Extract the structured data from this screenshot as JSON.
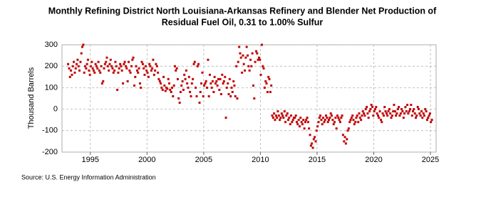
{
  "chart_data": {
    "type": "scatter",
    "title": "Monthly Refining District North Louisiana-Arkansas Refinery and Blender Net Production of",
    "subtitle": "Residual Fuel Oil, 0.31 to 1.00% Sulfur",
    "y_label": "Thousand Barrels",
    "source": "Source: U.S. Energy Information Administration",
    "color": "#c00000",
    "grid": true,
    "xlim": [
      1992.5,
      2025.5
    ],
    "ylim": [
      -200,
      300
    ],
    "xticks": [
      1995,
      2000,
      2005,
      2010,
      2015,
      2020,
      2025
    ],
    "yticks": [
      -200,
      -100,
      0,
      100,
      200,
      300
    ],
    "x": [
      1993.04,
      1993.13,
      1993.21,
      1993.29,
      1993.38,
      1993.46,
      1993.54,
      1993.63,
      1993.71,
      1993.79,
      1993.88,
      1993.96,
      1994.04,
      1994.13,
      1994.21,
      1994.29,
      1994.38,
      1994.46,
      1994.54,
      1994.63,
      1994.71,
      1994.79,
      1994.88,
      1994.96,
      1995.04,
      1995.13,
      1995.21,
      1995.29,
      1995.38,
      1995.46,
      1995.54,
      1995.63,
      1995.71,
      1995.79,
      1995.88,
      1995.96,
      1996.04,
      1996.13,
      1996.21,
      1996.29,
      1996.38,
      1996.46,
      1996.54,
      1996.63,
      1996.71,
      1996.79,
      1996.88,
      1996.96,
      1997.04,
      1997.13,
      1997.21,
      1997.29,
      1997.38,
      1997.46,
      1997.54,
      1997.63,
      1997.71,
      1997.79,
      1997.88,
      1997.96,
      1998.04,
      1998.13,
      1998.21,
      1998.29,
      1998.38,
      1998.46,
      1998.54,
      1998.63,
      1998.71,
      1998.79,
      1998.88,
      1998.96,
      1999.04,
      1999.13,
      1999.21,
      1999.29,
      1999.38,
      1999.46,
      1999.54,
      1999.63,
      1999.71,
      1999.79,
      1999.88,
      1999.96,
      2000.04,
      2000.13,
      2000.21,
      2000.29,
      2000.38,
      2000.46,
      2000.54,
      2000.63,
      2000.71,
      2000.79,
      2000.88,
      2000.96,
      2001.04,
      2001.13,
      2001.21,
      2001.29,
      2001.38,
      2001.46,
      2001.54,
      2001.63,
      2001.71,
      2001.79,
      2001.88,
      2001.96,
      2002.04,
      2002.13,
      2002.21,
      2002.29,
      2002.38,
      2002.46,
      2002.54,
      2002.63,
      2002.71,
      2002.79,
      2002.88,
      2002.96,
      2003.04,
      2003.13,
      2003.21,
      2003.29,
      2003.38,
      2003.46,
      2003.54,
      2003.63,
      2003.71,
      2003.79,
      2003.88,
      2003.96,
      2004.04,
      2004.13,
      2004.21,
      2004.29,
      2004.38,
      2004.46,
      2004.54,
      2004.63,
      2004.71,
      2004.79,
      2004.88,
      2004.96,
      2005.04,
      2005.13,
      2005.21,
      2005.29,
      2005.38,
      2005.46,
      2005.54,
      2005.63,
      2005.71,
      2005.79,
      2005.88,
      2005.96,
      2006.04,
      2006.13,
      2006.21,
      2006.29,
      2006.38,
      2006.46,
      2006.54,
      2006.63,
      2006.71,
      2006.79,
      2006.88,
      2006.96,
      2007.04,
      2007.13,
      2007.21,
      2007.29,
      2007.38,
      2007.46,
      2007.54,
      2007.63,
      2007.71,
      2007.79,
      2007.88,
      2007.96,
      2008.04,
      2008.13,
      2008.21,
      2008.29,
      2008.38,
      2008.46,
      2008.54,
      2008.63,
      2008.71,
      2008.79,
      2008.88,
      2008.96,
      2009.04,
      2009.13,
      2009.21,
      2009.29,
      2009.38,
      2009.46,
      2009.54,
      2009.63,
      2009.71,
      2009.79,
      2009.88,
      2009.96,
      2010.04,
      2010.13,
      2010.21,
      2010.29,
      2010.38,
      2010.46,
      2010.54,
      2010.63,
      2010.71,
      2010.79,
      2010.88,
      2010.96,
      2011.04,
      2011.13,
      2011.21,
      2011.29,
      2011.38,
      2011.46,
      2011.54,
      2011.63,
      2011.71,
      2011.79,
      2011.88,
      2011.96,
      2012.04,
      2012.13,
      2012.21,
      2012.29,
      2012.38,
      2012.46,
      2012.54,
      2012.63,
      2012.71,
      2012.79,
      2012.88,
      2012.96,
      2013.04,
      2013.13,
      2013.21,
      2013.29,
      2013.38,
      2013.46,
      2013.54,
      2013.63,
      2013.71,
      2013.79,
      2013.88,
      2013.96,
      2014.04,
      2014.13,
      2014.21,
      2014.29,
      2014.38,
      2014.46,
      2014.54,
      2014.63,
      2014.71,
      2014.79,
      2014.88,
      2014.96,
      2015.04,
      2015.13,
      2015.21,
      2015.29,
      2015.38,
      2015.46,
      2015.54,
      2015.63,
      2015.71,
      2015.79,
      2015.88,
      2015.96,
      2016.04,
      2016.13,
      2016.21,
      2016.29,
      2016.38,
      2016.46,
      2016.54,
      2016.63,
      2016.71,
      2016.79,
      2016.88,
      2016.96,
      2017.04,
      2017.13,
      2017.21,
      2017.29,
      2017.38,
      2017.46,
      2017.54,
      2017.63,
      2017.71,
      2017.79,
      2017.88,
      2017.96,
      2018.04,
      2018.13,
      2018.21,
      2018.29,
      2018.38,
      2018.46,
      2018.54,
      2018.63,
      2018.71,
      2018.79,
      2018.88,
      2018.96,
      2019.04,
      2019.13,
      2019.21,
      2019.29,
      2019.38,
      2019.46,
      2019.54,
      2019.63,
      2019.71,
      2019.79,
      2019.88,
      2019.96,
      2020.04,
      2020.13,
      2020.21,
      2020.29,
      2020.38,
      2020.46,
      2020.54,
      2020.63,
      2020.71,
      2020.79,
      2020.88,
      2020.96,
      2021.04,
      2021.13,
      2021.21,
      2021.29,
      2021.38,
      2021.46,
      2021.54,
      2021.63,
      2021.71,
      2021.79,
      2021.88,
      2021.96,
      2022.04,
      2022.13,
      2022.21,
      2022.29,
      2022.38,
      2022.46,
      2022.54,
      2022.63,
      2022.71,
      2022.79,
      2022.88,
      2022.96,
      2023.04,
      2023.13,
      2023.21,
      2023.29,
      2023.38,
      2023.46,
      2023.54,
      2023.63,
      2023.71,
      2023.79,
      2023.88,
      2023.96,
      2024.04,
      2024.13,
      2024.21,
      2024.29,
      2024.38,
      2024.46,
      2024.54,
      2024.63,
      2024.71,
      2024.79,
      2024.88,
      2024.96,
      2025.04,
      2025.13
    ],
    "values": [
      210,
      190,
      150,
      180,
      160,
      200,
      220,
      170,
      190,
      210,
      230,
      200,
      180,
      220,
      260,
      290,
      300,
      170,
      200,
      190,
      210,
      230,
      180,
      160,
      200,
      220,
      190,
      180,
      170,
      210,
      200,
      190,
      220,
      180,
      170,
      200,
      120,
      130,
      190,
      210,
      220,
      240,
      200,
      180,
      210,
      230,
      200,
      190,
      170,
      180,
      220,
      200,
      90,
      170,
      190,
      210,
      200,
      180,
      120,
      210,
      220,
      200,
      190,
      130,
      220,
      180,
      170,
      200,
      230,
      240,
      110,
      150,
      200,
      180,
      170,
      190,
      120,
      100,
      220,
      210,
      190,
      160,
      200,
      180,
      170,
      150,
      210,
      200,
      180,
      190,
      230,
      160,
      180,
      210,
      200,
      170,
      140,
      130,
      120,
      100,
      90,
      150,
      110,
      85,
      100,
      95,
      140,
      120,
      90,
      80,
      100,
      60,
      110,
      200,
      180,
      190,
      140,
      50,
      30,
      80,
      110,
      130,
      90,
      160,
      140,
      180,
      120,
      100,
      150,
      80,
      60,
      120,
      140,
      210,
      220,
      100,
      60,
      200,
      210,
      30,
      80,
      120,
      170,
      60,
      110,
      120,
      130,
      100,
      230,
      60,
      160,
      120,
      100,
      130,
      80,
      150,
      120,
      130,
      110,
      140,
      90,
      140,
      70,
      160,
      120,
      130,
      150,
      -40,
      100,
      120,
      70,
      140,
      60,
      100,
      80,
      130,
      110,
      60,
      200,
      50,
      220,
      290,
      260,
      240,
      170,
      250,
      210,
      180,
      240,
      290,
      250,
      200,
      180,
      230,
      200,
      260,
      110,
      50,
      220,
      270,
      260,
      230,
      240,
      230,
      160,
      300,
      200,
      190,
      100,
      130,
      120,
      80,
      150,
      140,
      80,
      110,
      -30,
      -40,
      -20,
      -50,
      -30,
      -40,
      -10,
      -30,
      -50,
      -40,
      -20,
      -30,
      -40,
      -10,
      -60,
      -30,
      -20,
      -50,
      -40,
      -70,
      -30,
      -60,
      -50,
      -40,
      -40,
      -30,
      -60,
      -70,
      -50,
      -80,
      -40,
      -60,
      -70,
      -50,
      -90,
      -60,
      -50,
      -40,
      -60,
      -90,
      -120,
      -170,
      -160,
      -180,
      -140,
      -130,
      -150,
      -100,
      -80,
      -60,
      -40,
      -30,
      -50,
      -70,
      -40,
      -60,
      -50,
      -30,
      -40,
      -60,
      -50,
      -40,
      -20,
      -30,
      -50,
      -70,
      -60,
      -40,
      -90,
      -30,
      -40,
      -50,
      -60,
      -40,
      -30,
      -120,
      -150,
      -130,
      -160,
      -140,
      -100,
      -90,
      -60,
      -50,
      -40,
      -30,
      -50,
      -70,
      -60,
      -40,
      -30,
      -60,
      -20,
      -40,
      -50,
      -30,
      -10,
      -20,
      -30,
      0,
      10,
      -20,
      -40,
      -10,
      0,
      20,
      10,
      -30,
      -10,
      0,
      10,
      -20,
      -30,
      -40,
      -10,
      -50,
      -60,
      -20,
      -30,
      10,
      -10,
      -20,
      -30,
      -10,
      0,
      -20,
      -40,
      -30,
      -10,
      20,
      -10,
      -30,
      -20,
      0,
      10,
      -30,
      -20,
      0,
      -10,
      -40,
      -20,
      10,
      -10,
      20,
      -20,
      -10,
      0,
      20,
      -30,
      -10,
      0,
      -20,
      -40,
      -30,
      10,
      0,
      -20,
      -30,
      -10,
      -40,
      -20,
      -30,
      0,
      -10,
      -50,
      -40,
      -30,
      -20,
      -60,
      -50
    ]
  }
}
